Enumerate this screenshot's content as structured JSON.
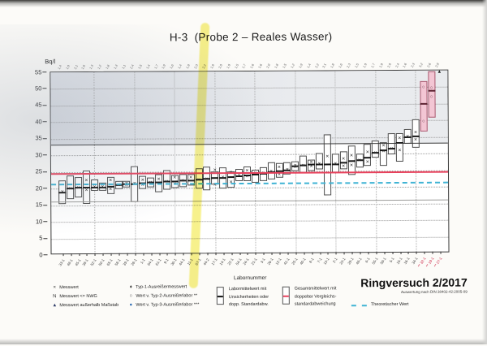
{
  "page": {
    "title": "H-3  (Probe 2 – Reales Wasser)",
    "y_axis_unit": "Bq/l",
    "x_axis_title": "Labornummer",
    "footer_title": "Ringversuch 2/2017",
    "footer_subtitle": "Auswertung nach DIN 38402-42:2005-09"
  },
  "legend": {
    "col1": [
      {
        "icon": "×",
        "label": "Messwert"
      },
      {
        "icon": "N",
        "label": "Messwert <= NWG"
      },
      {
        "icon": "▲",
        "label": "Messwert außerhalb Maßstab"
      }
    ],
    "col2": [
      {
        "icon": "♦",
        "label": "Typ-1-Ausreißermesswert"
      },
      {
        "icon": "○",
        "label": "Wert v. Typ-2-Ausreißerlabor **"
      },
      {
        "icon": "●",
        "label": "Wert v. Typ-3-Ausreißerlabor ***"
      }
    ],
    "labormittelwert": "Labormittelwert mit\nUnsicherheiten oder\ndopp. Standardabw.",
    "gesamtmittelwert": "Gesamtmittelwert mit\ndoppelter Vergleichs-\nstandardabweichung",
    "theoretischer_wert": "Theoretischer Wert"
  },
  "chart_data": {
    "type": "box",
    "title": "H-3 (Probe 2 – Reales Wasser)",
    "ylabel": "Bq/l",
    "xlabel": "Labornummer",
    "ylim": [
      0,
      55
    ],
    "ytick_step": 5,
    "grid": "dotted",
    "reference_lines": {
      "gesamtmittelwert": 24.5,
      "obere_grenze": 33.0,
      "untere_grenze": 15.8,
      "theoretischer_wert": 21.3
    },
    "shaded_band_above": [
      33.0,
      55.0
    ],
    "labs": [
      {
        "n": "33-1",
        "t": "1,4",
        "lo": 15.4,
        "hi": 22.6,
        "m": 18.9,
        "x": [
          18.9
        ]
      },
      {
        "n": "48-1",
        "t": "1,9",
        "lo": 16.8,
        "hi": 23.9,
        "m": 20.0,
        "x": [
          20.0
        ]
      },
      {
        "n": "45-1",
        "t": "2,1",
        "lo": 17.4,
        "hi": 23.4,
        "m": 20.2,
        "x": [
          20.2
        ]
      },
      {
        "n": "38-1",
        "t": "1,6",
        "lo": 15.3,
        "hi": 25.4,
        "m": 20.3,
        "x": [
          22.4,
          19.4
        ]
      },
      {
        "n": "52-1",
        "t": "1,3",
        "lo": 19.3,
        "hi": 22.8,
        "m": 20.4,
        "x": [
          20.4
        ]
      },
      {
        "n": "50-1",
        "t": "1,2",
        "lo": 19.2,
        "hi": 21.7,
        "m": 20.4,
        "x": [
          20.4
        ]
      },
      {
        "n": "65-1",
        "t": "1,8",
        "lo": 18.4,
        "hi": 23.4,
        "m": 20.6,
        "x": [
          22.4,
          19.6
        ]
      },
      {
        "n": "58-1",
        "t": "1,3",
        "lo": 19.8,
        "hi": 22.3,
        "m": 21.0,
        "x": [
          21.0
        ]
      },
      {
        "n": "39-1",
        "t": "1,1",
        "lo": 20.2,
        "hi": 22.3,
        "m": 21.2,
        "x": [
          21.5,
          20.9
        ]
      },
      {
        "n": "28-1",
        "t": "2,4",
        "lo": 15.8,
        "hi": 26.6,
        "m": 21.3,
        "x": [
          21.3
        ]
      },
      {
        "n": "1-1",
        "t": "1,5",
        "lo": 19.9,
        "hi": 23.6,
        "m": 21.5,
        "x": [
          22.4,
          21.0
        ]
      },
      {
        "n": "64-1",
        "t": "1,4",
        "lo": 20.3,
        "hi": 23.2,
        "m": 21.7,
        "x": [
          21.7
        ]
      },
      {
        "n": "61-1",
        "t": "1,7",
        "lo": 18.7,
        "hi": 24.3,
        "m": 21.8,
        "x": [
          22.6
        ]
      },
      {
        "n": "9-1",
        "t": "1,9",
        "lo": 19.5,
        "hi": 25.5,
        "m": 22.0,
        "x": [
          22.0
        ]
      },
      {
        "n": "36-1",
        "t": "1,6",
        "lo": 20.0,
        "hi": 24.0,
        "m": 22.1,
        "x": [
          23.0,
          21.2
        ]
      },
      {
        "n": "44-1",
        "t": "1,4",
        "lo": 20.4,
        "hi": 24.3,
        "m": 22.2,
        "x": [
          22.2
        ]
      },
      {
        "n": "11-1",
        "t": "1,8",
        "lo": 20.7,
        "hi": 24.1,
        "m": 22.3,
        "x": [
          23.2
        ]
      },
      {
        "n": "67-1",
        "t": "2,0",
        "lo": 19.7,
        "hi": 25.9,
        "m": 22.4,
        "x": [
          22.4
        ],
        "hl": true
      },
      {
        "n": "44-2",
        "t": "2,2",
        "lo": 19.2,
        "hi": 26.3,
        "m": 22.7,
        "x": [
          22.7
        ]
      },
      {
        "n": "17-1",
        "t": "1,6",
        "lo": 21.0,
        "hi": 25.0,
        "m": 23.0,
        "x": [
          25.2,
          21.0
        ]
      },
      {
        "n": "14-1",
        "t": "2,0",
        "lo": 19.9,
        "hi": 26.2,
        "m": 23.1,
        "x": [
          23.1
        ]
      },
      {
        "n": "22-1",
        "t": "1,9",
        "lo": 20.0,
        "hi": 25.0,
        "m": 23.2,
        "x": [
          24.6,
          21.6
        ]
      },
      {
        "n": "54-1",
        "t": "1,5",
        "lo": 21.9,
        "hi": 25.7,
        "m": 23.5,
        "x": [
          23.5
        ]
      },
      {
        "n": "24-1",
        "t": "1,7",
        "lo": 22.0,
        "hi": 26.3,
        "m": 23.7,
        "x": [
          25.0,
          23.4
        ]
      },
      {
        "n": "21-1",
        "t": "1,6",
        "lo": 21.5,
        "hi": 25.5,
        "m": 23.9,
        "x": [
          24.4
        ]
      },
      {
        "n": "3-1",
        "t": "1,6",
        "lo": 22.1,
        "hi": 26.1,
        "m": 24.2,
        "x": [
          24.4
        ]
      },
      {
        "n": "26-1",
        "t": "2,0",
        "lo": 22.6,
        "hi": 27.6,
        "m": 24.8,
        "x": [
          24.8
        ]
      },
      {
        "n": "12-1",
        "t": "1,8",
        "lo": 22.9,
        "hi": 27.3,
        "m": 24.9,
        "x": [
          26.0,
          23.8
        ]
      },
      {
        "n": "41-1",
        "t": "1,5",
        "lo": 23.9,
        "hi": 27.7,
        "m": 25.3,
        "x": [
          25.3
        ]
      },
      {
        "n": "25-1",
        "t": "1,2",
        "lo": 24.9,
        "hi": 27.8,
        "m": 26.3,
        "x": [
          26.6,
          26.0
        ]
      },
      {
        "n": "40-1",
        "t": "1,9",
        "lo": 24.4,
        "hi": 29.6,
        "m": 26.6,
        "x": [
          26.6
        ]
      },
      {
        "n": "8-1",
        "t": "1,4",
        "lo": 25.0,
        "hi": 28.4,
        "m": 26.9,
        "x": [
          27.4,
          26.2
        ]
      },
      {
        "n": "7-1",
        "t": "2,2",
        "lo": 25.4,
        "hi": 30.2,
        "m": 27.0,
        "x": [
          27.0
        ]
      },
      {
        "n": "13-1",
        "t": "3,1",
        "lo": 17.6,
        "hi": 36.0,
        "m": 26.8,
        "x": [
          29.2,
          24.3
        ]
      },
      {
        "n": "2-1",
        "t": "1,8",
        "lo": 24.4,
        "hi": 30.0,
        "m": 27.0,
        "x": [
          27.0
        ]
      },
      {
        "n": "23-1",
        "t": "1,6",
        "lo": 25.4,
        "hi": 30.9,
        "m": 27.4,
        "x": [
          28.4,
          26.4
        ]
      },
      {
        "n": "29-1",
        "t": "2,3",
        "lo": 23.6,
        "hi": 32.4,
        "m": 27.8,
        "x": [
          29.5,
          26.5
        ]
      },
      {
        "n": "46-1",
        "t": "1,5",
        "lo": 26.0,
        "hi": 30.0,
        "m": 28.0,
        "x": [
          28.0
        ]
      },
      {
        "n": "6-1",
        "t": "1,9",
        "lo": 26.5,
        "hi": 32.9,
        "m": 28.8,
        "x": [
          30.4,
          27.4
        ]
      },
      {
        "n": "55-1",
        "t": "1,7",
        "lo": 28.9,
        "hi": 33.9,
        "m": 30.2,
        "x": [
          30.2
        ]
      },
      {
        "n": "59-1",
        "t": "1,9",
        "lo": 26.3,
        "hi": 33.4,
        "m": 31.0,
        "x": [
          32.4,
          30.8
        ]
      },
      {
        "n": "5-1",
        "t": "2,0",
        "lo": 29.7,
        "hi": 36.2,
        "m": 31.5,
        "x": [
          31.5
        ]
      },
      {
        "n": "15-1",
        "t": "2,4",
        "lo": 27.6,
        "hi": 36.3,
        "m": 33.2,
        "x": [
          34.6,
          31.0
        ]
      },
      {
        "n": "16-1",
        "t": "1,6",
        "lo": 32.9,
        "hi": 37.3,
        "m": 35.0,
        "x": [
          35.0
        ]
      },
      {
        "n": "34-1",
        "t": "2,3",
        "lo": 31.8,
        "hi": 40.3,
        "m": 35.3,
        "x": [
          36.4,
          34.0
        ]
      },
      {
        "n": "** 32-1",
        "t": "3,2",
        "lo": 36.7,
        "hi": 51.8,
        "m": 44.9,
        "o": [
          49.8,
          39.6
        ],
        "type": "a2",
        "red": true
      },
      {
        "n": "** 19-1",
        "t": "2,6",
        "lo": 40.8,
        "hi": 54.7,
        "m": 48.9,
        "o": [
          49.6,
          47.0
        ],
        "type": "a2",
        "red": true
      },
      {
        "n": "** 27-1",
        "t": "2,9",
        "tri": 54.5,
        "type": "a2",
        "red": true
      }
    ]
  }
}
